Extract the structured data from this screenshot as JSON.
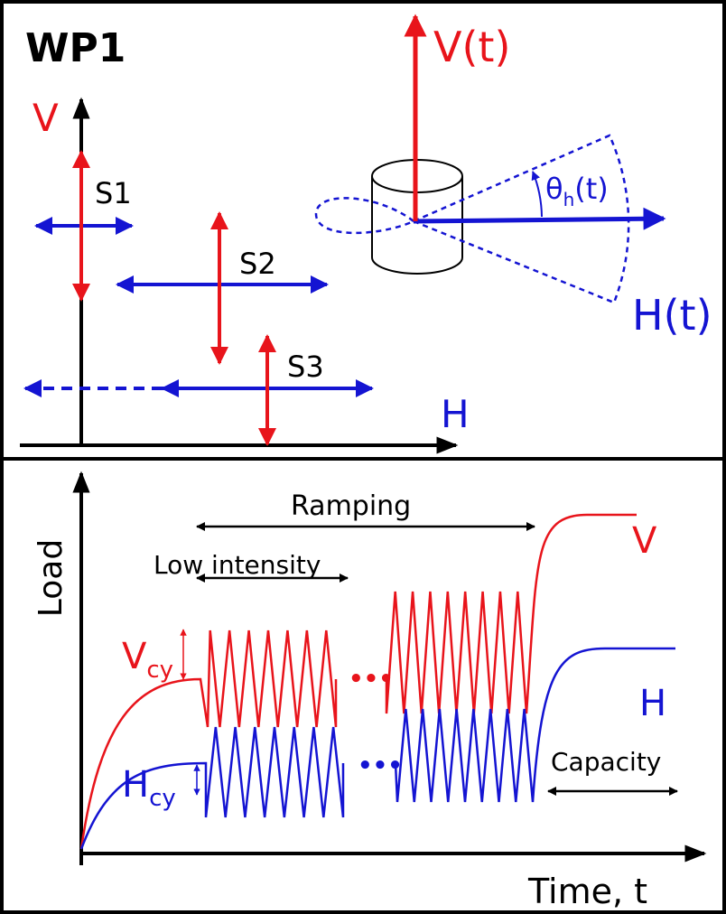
{
  "top_panel": {
    "title": "WP1",
    "v_axis_label": "V",
    "h_axis_label": "H",
    "cases": [
      "S1",
      "S2",
      "S3"
    ],
    "vertical_load": "V(t)",
    "horizontal_load": "H(t)",
    "angle": {
      "base": "θ",
      "sub": "h",
      "suffix": "(t)"
    }
  },
  "bottom_panel": {
    "y_axis_label": "Load",
    "x_axis_label": "Time, t",
    "stages": {
      "ramping": "Ramping",
      "low_intensity": "Low intensity",
      "capacity": "Capacity"
    },
    "series_labels": {
      "vertical": "V",
      "horizontal": "H"
    },
    "cyclic_vertical": {
      "base": "V",
      "sub": "cy"
    },
    "cyclic_horizontal": {
      "base": "H",
      "sub": "cy"
    }
  }
}
